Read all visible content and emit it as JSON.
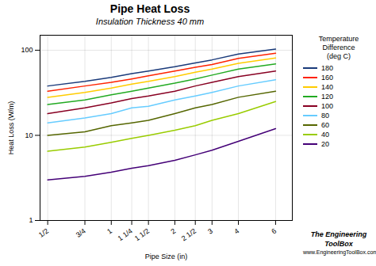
{
  "chart_data": {
    "type": "line",
    "title": "Pipe Heat Loss",
    "subtitle": "Insulation Thickness 40 mm",
    "xlabel": "Pipe Size (in)",
    "ylabel": "Heat Loss (W/m)",
    "legend_title": "Temperature\nDifference\n(deg C)",
    "x": [
      0.5,
      0.75,
      1.0,
      1.25,
      1.5,
      2.0,
      2.5,
      3.0,
      4.0,
      6.0
    ],
    "series": [
      {
        "name": "180",
        "color": "#1a3a7a",
        "values": [
          38,
          43,
          48,
          53,
          57,
          64,
          71,
          77,
          90,
          103
        ]
      },
      {
        "name": "160",
        "color": "#ff2200",
        "values": [
          33,
          38,
          42,
          46,
          50,
          57,
          63,
          68,
          80,
          92
        ]
      },
      {
        "name": "140",
        "color": "#ffcc00",
        "values": [
          28,
          32,
          36,
          40,
          43,
          49,
          55,
          60,
          70,
          81
        ]
      },
      {
        "name": "120",
        "color": "#22aa22",
        "values": [
          23,
          26,
          30,
          33,
          36,
          41,
          46,
          51,
          60,
          69
        ]
      },
      {
        "name": "100",
        "color": "#880022",
        "values": [
          18,
          21,
          24,
          27,
          29,
          33,
          38,
          42,
          49,
          57
        ]
      },
      {
        "name": "80",
        "color": "#66ccff",
        "values": [
          14,
          16,
          18,
          21,
          22,
          26,
          29,
          32,
          38,
          45
        ]
      },
      {
        "name": "60",
        "color": "#556600",
        "values": [
          10,
          11,
          13,
          14,
          15,
          18,
          21,
          23,
          28,
          33
        ]
      },
      {
        "name": "40",
        "color": "#99cc00",
        "values": [
          6.5,
          7.3,
          8.3,
          9.2,
          10,
          11.5,
          13,
          15,
          18,
          25
        ]
      },
      {
        "name": "20",
        "color": "#440077",
        "values": [
          3.0,
          3.3,
          3.7,
          4.1,
          4.4,
          5.1,
          5.9,
          6.7,
          8.5,
          12
        ]
      }
    ],
    "xlim": [
      0.46,
      7.2
    ],
    "xticks": [
      {
        "value": 0.5,
        "label": "1/2"
      },
      {
        "value": 0.75,
        "label": "3/4"
      },
      1,
      {
        "value": 1.25,
        "label": "1 1/4"
      },
      {
        "value": 1.5,
        "label": "1 1/2"
      },
      2,
      {
        "value": 2.5,
        "label": "2 1/2"
      },
      3,
      4,
      6
    ],
    "ylim": [
      1,
      150
    ],
    "yticks": [
      1,
      10,
      100
    ],
    "log": true,
    "grid": true,
    "legend": "right",
    "annotations": [
      "The Engineering ToolBox",
      "www.EngineeringToolBox.com"
    ]
  }
}
